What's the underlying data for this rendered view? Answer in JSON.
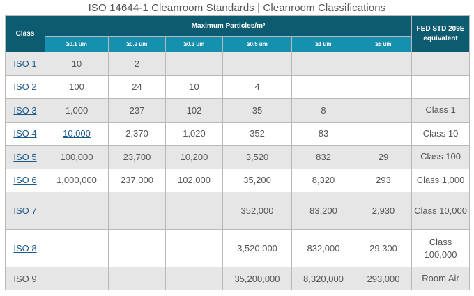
{
  "title": "ISO 14644-1 Cleanroom Standards | Cleanroom Classifications",
  "header": {
    "class": "Class",
    "max_particles": "Maximum  Particles/m³",
    "fed": "FED STD 209E equivalent",
    "sizes": [
      "≥0.1 um",
      "≥0.2 um",
      "≥0.3 um",
      "≥0.5 um",
      "≥1 um",
      "≥5 um"
    ]
  },
  "rows": [
    {
      "class": "ISO 1",
      "link": true,
      "v": [
        "10",
        "2",
        "",
        "",
        "",
        ""
      ],
      "fed": ""
    },
    {
      "class": "ISO 2",
      "link": true,
      "v": [
        "100",
        "24",
        "10",
        "4",
        "",
        ""
      ],
      "fed": ""
    },
    {
      "class": "ISO 3",
      "link": true,
      "v": [
        "1,000",
        "237",
        "102",
        "35",
        "8",
        ""
      ],
      "fed": "Class 1"
    },
    {
      "class": "ISO 4",
      "link": true,
      "v": [
        "10,000",
        "2,370",
        "1,020",
        "352",
        "83",
        ""
      ],
      "fed": "Class 10"
    },
    {
      "class": "ISO 5",
      "link": true,
      "v": [
        "100,000",
        "23,700",
        "10,200",
        "3,520",
        "832",
        "29"
      ],
      "fed": "Class 100"
    },
    {
      "class": "ISO 6",
      "link": true,
      "v": [
        "1,000,000",
        "237,000",
        "102,000",
        "35,200",
        "8,320",
        "293"
      ],
      "fed": "Class 1,000"
    },
    {
      "class": "ISO 7",
      "link": true,
      "v": [
        "",
        "",
        "",
        "352,000",
        "83,200",
        "2,930"
      ],
      "fed": "Class 10,000"
    },
    {
      "class": "ISO 8",
      "link": true,
      "v": [
        "",
        "",
        "",
        "3,520,000",
        "832,000",
        "29,300"
      ],
      "fed": "Class 100,000"
    },
    {
      "class": "ISO 9",
      "link": false,
      "v": [
        "",
        "",
        "",
        "35,200,000",
        "8,320,000",
        "293,000"
      ],
      "fed": "Room Air"
    }
  ]
}
